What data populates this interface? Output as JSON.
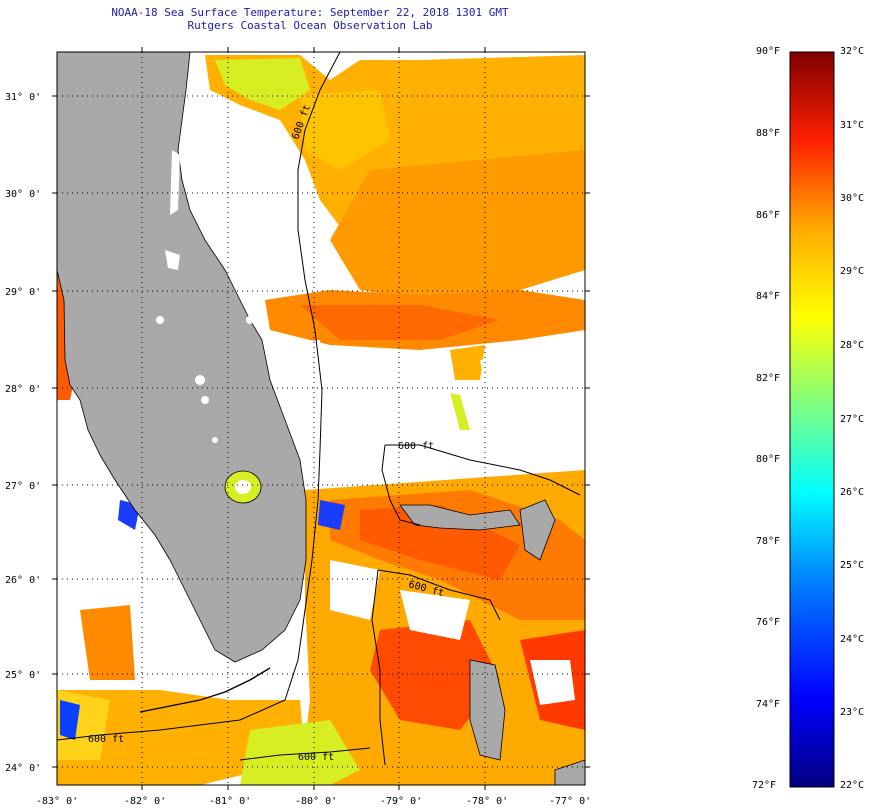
{
  "title": {
    "line1": "NOAA-18 Sea Surface Temperature:  September 22, 2018 1301 GMT",
    "line2": "Rutgers Coastal Ocean Observation Lab"
  },
  "map": {
    "lat_labels": [
      "31° 0'",
      "30° 0'",
      "29° 0'",
      "28° 0'",
      "27° 0'",
      "26° 0'",
      "25° 0'",
      "24° 0'"
    ],
    "lon_labels": [
      "-83° 0'",
      "-82° 0'",
      "-81° 0'",
      "-80° 0'",
      "-79° 0'",
      "-78° 0'",
      "-77° 0'"
    ],
    "contour_labels": [
      "600 ft",
      "600 ft",
      "600 ft",
      "600 ft",
      "600 ft"
    ],
    "colors": {
      "land": "#a9a9a9",
      "ocean_warm": "#ff6a00",
      "ocean_mid": "#ffb300",
      "ocean_cool": "#d8ef1c",
      "cloud": "#ffffff"
    }
  },
  "colorbar": {
    "fahrenheit": [
      "90°F",
      "88°F",
      "86°F",
      "84°F",
      "82°F",
      "80°F",
      "78°F",
      "76°F",
      "74°F",
      "72°F"
    ],
    "celsius": [
      "32°C",
      "31°C",
      "30°C",
      "29°C",
      "28°C",
      "27°C",
      "26°C",
      "25°C",
      "24°C",
      "23°C",
      "22°C"
    ],
    "range_f": [
      72,
      90
    ],
    "range_c": [
      22,
      32
    ],
    "gradient": [
      "#00007f",
      "#0000ff",
      "#0080ff",
      "#00ffff",
      "#80ff80",
      "#ffff00",
      "#ffaa00",
      "#ff4000",
      "#ff0000",
      "#800000"
    ]
  }
}
